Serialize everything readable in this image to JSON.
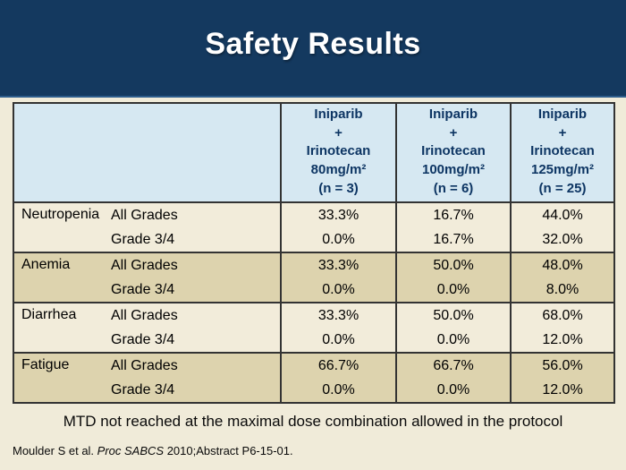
{
  "title": "Safety Results",
  "table": {
    "columns": [
      {
        "drug": "Iniparib",
        "plus": "+",
        "combo": "Irinotecan",
        "dose": "80mg/m²",
        "n": "(n = 3)"
      },
      {
        "drug": "Iniparib",
        "plus": "+",
        "combo": "Irinotecan",
        "dose": "100mg/m²",
        "n": "(n = 6)"
      },
      {
        "drug": "Iniparib",
        "plus": "+",
        "combo": "Irinotecan",
        "dose": "125mg/m²",
        "n": "(n = 25)"
      }
    ],
    "grade_labels": [
      "All Grades",
      "Grade 3/4"
    ],
    "rows": [
      {
        "condition": "Neutropenia",
        "all_grades": [
          "33.3%",
          "16.7%",
          "44.0%"
        ],
        "grade_3_4": [
          "0.0%",
          "16.7%",
          "32.0%"
        ]
      },
      {
        "condition": "Anemia",
        "all_grades": [
          "33.3%",
          "50.0%",
          "48.0%"
        ],
        "grade_3_4": [
          "0.0%",
          "0.0%",
          "8.0%"
        ]
      },
      {
        "condition": "Diarrhea",
        "all_grades": [
          "33.3%",
          "50.0%",
          "68.0%"
        ],
        "grade_3_4": [
          "0.0%",
          "0.0%",
          "12.0%"
        ]
      },
      {
        "condition": "Fatigue",
        "all_grades": [
          "66.7%",
          "66.7%",
          "56.0%"
        ],
        "grade_3_4": [
          "0.0%",
          "0.0%",
          "12.0%"
        ]
      }
    ]
  },
  "footer": {
    "note": "MTD not reached at the maximal dose combination allowed in the protocol",
    "citation_prefix": "Moulder S et al. ",
    "citation_italic": "Proc SABCS",
    "citation_suffix": " 2010;Abstract P6-15-01."
  },
  "colors": {
    "banner_navy": "#14395f",
    "banner_underline": "#2e5d8c",
    "header_cell_blue": "#d6e8f2",
    "header_text_navy": "#0d3563",
    "row_light": "#f2ecda",
    "row_tan": "#ddd3ae",
    "page_background": "#f0ebd9",
    "border_dark": "#333333",
    "title_white": "#ffffff"
  }
}
